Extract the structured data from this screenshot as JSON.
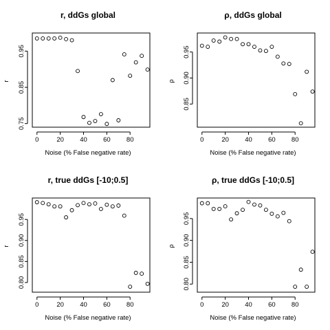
{
  "chart_data": [
    {
      "type": "scatter",
      "title": "r, ddGs global",
      "xlabel": "Noise (% False negative rate)",
      "ylabel": "r",
      "xlim": [
        -4,
        97
      ],
      "ylim": [
        0.74,
        1.0
      ],
      "xticks": [
        0,
        20,
        40,
        60,
        80
      ],
      "yticks": [
        0.75,
        0.85,
        0.95
      ],
      "x": [
        0,
        5,
        10,
        15,
        20,
        25,
        30,
        35,
        40,
        45,
        50,
        55,
        60,
        65,
        70,
        75,
        80,
        85,
        90,
        95
      ],
      "y": [
        0.985,
        0.985,
        0.985,
        0.985,
        0.987,
        0.983,
        0.98,
        0.895,
        0.768,
        0.752,
        0.757,
        0.776,
        0.749,
        0.87,
        0.759,
        0.941,
        0.882,
        0.919,
        0.937,
        0.899
      ]
    },
    {
      "type": "scatter",
      "title": "ρ, ddGs global",
      "xlabel": "Noise (% False negative rate)",
      "ylabel": "ρ",
      "xlim": [
        -4,
        97
      ],
      "ylim": [
        0.8055,
        0.9865
      ],
      "xticks": [
        0,
        20,
        40,
        60,
        80
      ],
      "yticks": [
        0.85,
        0.9,
        0.95
      ],
      "x": [
        0,
        5,
        10,
        15,
        20,
        25,
        30,
        35,
        40,
        45,
        50,
        55,
        60,
        65,
        70,
        75,
        80,
        85,
        90,
        95
      ],
      "y": [
        0.962,
        0.96,
        0.972,
        0.97,
        0.978,
        0.975,
        0.975,
        0.965,
        0.965,
        0.96,
        0.953,
        0.952,
        0.96,
        0.941,
        0.928,
        0.927,
        0.869,
        0.813,
        0.912,
        0.874
      ]
    },
    {
      "type": "scatter",
      "title": "r, true ddGs [-10;0.5]",
      "xlabel": "Noise (% False negative rate)",
      "ylabel": "r",
      "xlim": [
        -4,
        97
      ],
      "ylim": [
        0.777,
        1.001
      ],
      "xticks": [
        0,
        20,
        40,
        60,
        80
      ],
      "yticks": [
        0.8,
        0.85,
        0.9,
        0.95
      ],
      "x": [
        0,
        5,
        10,
        15,
        20,
        25,
        30,
        35,
        40,
        45,
        50,
        55,
        60,
        65,
        70,
        75,
        80,
        85,
        90,
        95
      ],
      "y": [
        0.991,
        0.989,
        0.986,
        0.981,
        0.981,
        0.955,
        0.972,
        0.984,
        0.989,
        0.986,
        0.988,
        0.975,
        0.985,
        0.981,
        0.983,
        0.959,
        0.79,
        0.823,
        0.821,
        0.797
      ]
    },
    {
      "type": "scatter",
      "title": "ρ, true ddGs [-10;0.5]",
      "xlabel": "Noise (% False negative rate)",
      "ylabel": "ρ",
      "xlim": [
        -4,
        97
      ],
      "ylim": [
        0.7815,
        0.997
      ],
      "xticks": [
        0,
        20,
        40,
        60,
        80
      ],
      "yticks": [
        0.8,
        0.85,
        0.9,
        0.95
      ],
      "x": [
        0,
        5,
        10,
        15,
        20,
        25,
        30,
        35,
        40,
        45,
        50,
        55,
        60,
        65,
        70,
        75,
        80,
        85,
        90,
        95
      ],
      "y": [
        0.985,
        0.985,
        0.972,
        0.972,
        0.978,
        0.948,
        0.962,
        0.97,
        0.988,
        0.982,
        0.98,
        0.97,
        0.961,
        0.955,
        0.963,
        0.944,
        0.794,
        0.833,
        0.794,
        0.874
      ]
    }
  ]
}
